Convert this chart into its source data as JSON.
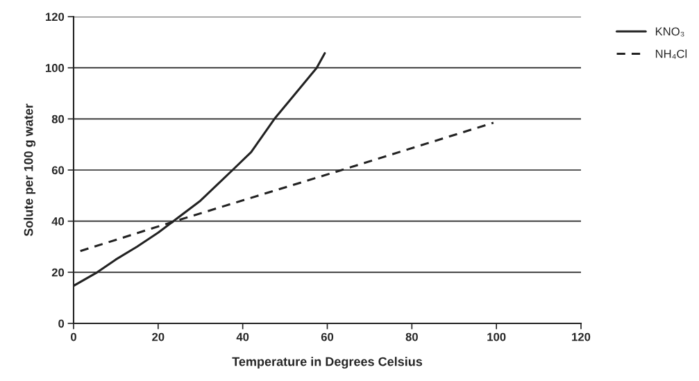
{
  "chart_data": {
    "type": "line",
    "xlabel": "Temperature in Degrees Celsius",
    "ylabel": "Solute per 100 g water",
    "xlim": [
      0,
      120
    ],
    "xticks": [
      0,
      20,
      40,
      60,
      80,
      100,
      120
    ],
    "ylim": [
      0,
      120
    ],
    "yticks": [
      0,
      20,
      40,
      60,
      80,
      100,
      120
    ],
    "grid": "y",
    "legend": "top right",
    "marker": "none",
    "series": [
      {
        "name": "KNO₃",
        "color": "#222222",
        "line_style": "solid",
        "x": [
          0,
          5.6,
          10,
          15,
          20,
          23.6,
          30,
          37.6,
          42,
          47.5,
          52,
          57.5,
          59.4
        ],
        "values": [
          14.7,
          20,
          25,
          30,
          35.5,
          40,
          48,
          60,
          67,
          80,
          89,
          100,
          105.7
        ]
      },
      {
        "name": "NH₄Cl",
        "color": "#222222",
        "line_style": "dashed",
        "x": [
          1.6,
          24,
          63.4,
          99.3
        ],
        "values": [
          28.3,
          40,
          60,
          78.5
        ]
      }
    ]
  }
}
